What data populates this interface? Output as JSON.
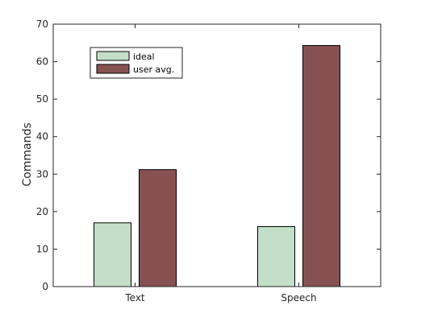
{
  "chart_data": {
    "type": "bar",
    "categories": [
      "Text",
      "Speech"
    ],
    "series": [
      {
        "name": "ideal",
        "values": [
          17,
          16
        ],
        "color": "#c3dfc7"
      },
      {
        "name": "user avg.",
        "values": [
          31.2,
          64.3
        ],
        "color": "#875152"
      }
    ],
    "title": "",
    "xlabel": "",
    "ylabel": "Commands",
    "ylim": [
      0,
      70
    ],
    "yticks": [
      0,
      10,
      20,
      30,
      40,
      50,
      60,
      70
    ],
    "grid": false,
    "legend_position": "top-left"
  }
}
